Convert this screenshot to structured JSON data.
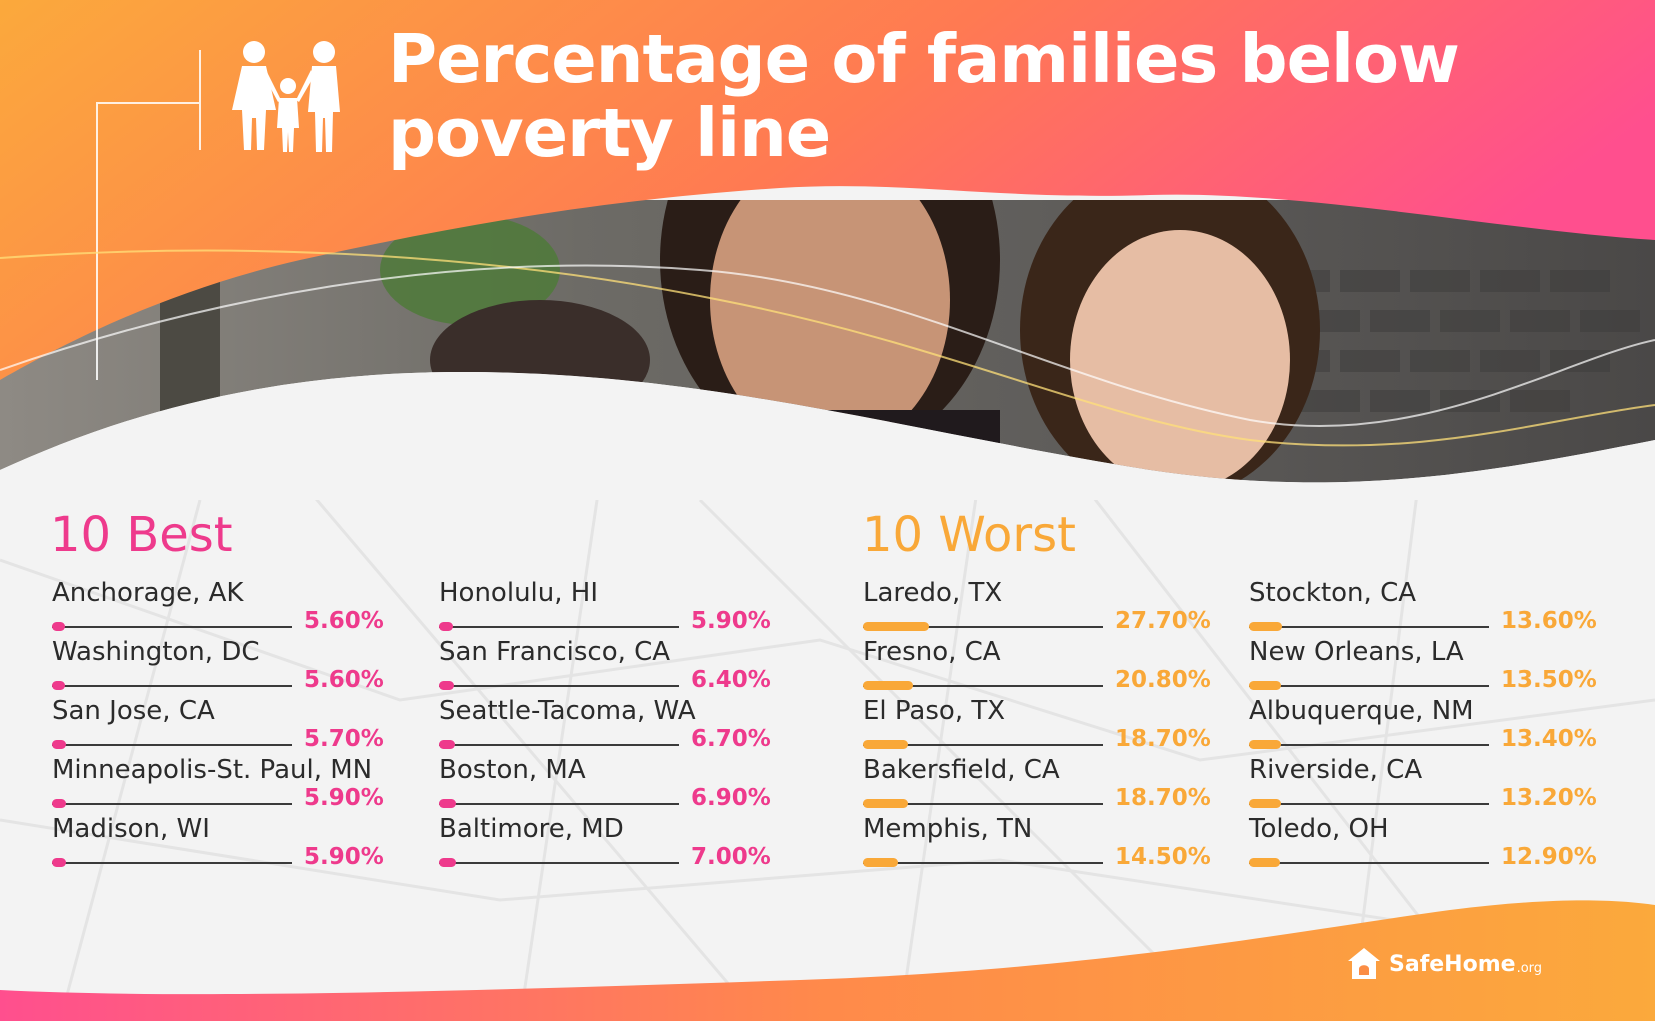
{
  "header": {
    "title_line1": "Percentage of families below",
    "title_line2": "poverty line"
  },
  "colors": {
    "best": "#ee3a8c",
    "worst": "#f9a838",
    "orange": "#fba23a",
    "pink": "#ff4f8b",
    "text": "#2b2b2b"
  },
  "icons": {
    "header": "family-icon",
    "logo": "safehome-house-icon"
  },
  "chart_data": [
    {
      "type": "bar",
      "title": "10 Best",
      "xlim": [
        0,
        100
      ],
      "categories": [
        "Anchorage, AK",
        "Washington, DC",
        "San Jose, CA",
        "Minneapolis-St. Paul, MN",
        "Madison, WI",
        "Honolulu, HI",
        "San Francisco, CA",
        "Seattle-Tacoma, WA",
        "Boston, MA",
        "Baltimore, MD"
      ],
      "values": [
        5.6,
        5.6,
        5.7,
        5.9,
        5.9,
        5.9,
        6.4,
        6.7,
        6.9,
        7.0
      ],
      "labels": [
        "5.60%",
        "5.60%",
        "5.70%",
        "5.90%",
        "5.90%",
        "5.90%",
        "6.40%",
        "6.70%",
        "6.90%",
        "7.00%"
      ]
    },
    {
      "type": "bar",
      "title": "10 Worst",
      "xlim": [
        0,
        100
      ],
      "categories": [
        "Laredo, TX",
        "Fresno, CA",
        "El Paso, TX",
        "Bakersfield, CA",
        "Memphis, TN",
        "Stockton, CA",
        "New Orleans, LA",
        "Albuquerque, NM",
        "Riverside, CA",
        "Toledo, OH"
      ],
      "values": [
        27.7,
        20.8,
        18.7,
        18.7,
        14.5,
        13.6,
        13.5,
        13.4,
        13.2,
        12.9
      ],
      "labels": [
        "27.70%",
        "20.80%",
        "18.70%",
        "18.70%",
        "14.50%",
        "13.60%",
        "13.50%",
        "13.40%",
        "13.20%",
        "12.90%"
      ]
    }
  ],
  "logo": {
    "name": "SafeHome",
    "suffix": ".org"
  }
}
